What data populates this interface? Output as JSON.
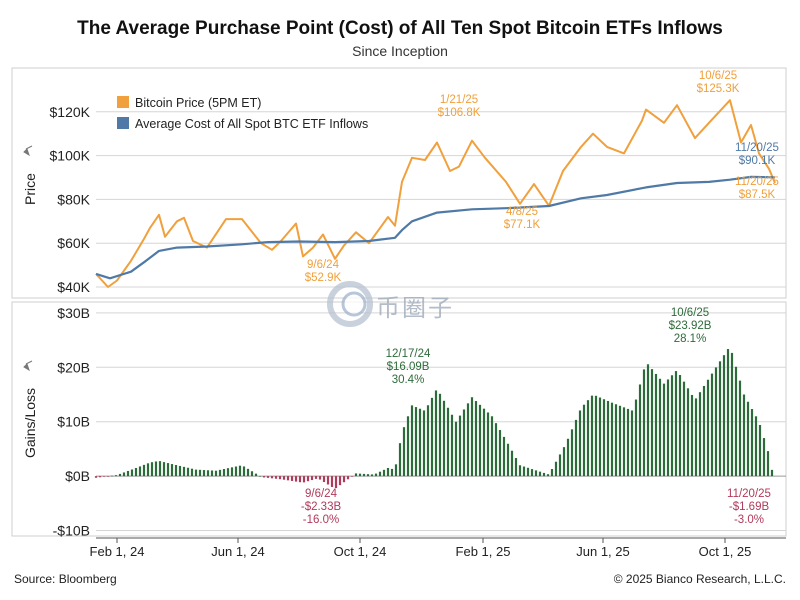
{
  "header": {
    "title": "The Average Purchase Point (Cost) of All Ten Spot Bitcoin ETFs Inflows",
    "subtitle": "Since Inception"
  },
  "footer": {
    "source": "Source: Bloomberg",
    "copyright": "© 2025 Bianco Research, L.L.C."
  },
  "watermark": {
    "text": "币圈子"
  },
  "colors": {
    "price": "#F0A03C",
    "cost": "#4F79A6",
    "gain": "#2E6B3A",
    "loss": "#B03A5B",
    "grid": "#D5D5D5",
    "axis": "#333333"
  },
  "chart_data": [
    {
      "type": "line",
      "ylabel": "Price",
      "ylim": [
        35000,
        140000
      ],
      "yticks": [
        40000,
        60000,
        80000,
        100000,
        120000
      ],
      "ytick_labels": [
        "$40K",
        "$60K",
        "$80K",
        "$100K",
        "$120K"
      ],
      "xlim": [
        "2024-01-11",
        "2025-12-01"
      ],
      "xticks": [
        "2024-02-01",
        "2024-06-01",
        "2024-10-01",
        "2025-02-01",
        "2025-06-01",
        "2025-10-01"
      ],
      "xtick_labels": [
        "Feb 1, 24",
        "Jun 1, 24",
        "Oct 1, 24",
        "Feb 1, 25",
        "Jun 1, 25",
        "Oct 1, 25"
      ],
      "grid": true,
      "legend_position": "top-left",
      "series": [
        {
          "name": "Bitcoin Price (5PM ET)",
          "x": [
            "2024-01-11",
            "2024-01-23",
            "2024-02-01",
            "2024-02-15",
            "2024-02-28",
            "2024-03-05",
            "2024-03-14",
            "2024-03-20",
            "2024-04-01",
            "2024-04-08",
            "2024-04-17",
            "2024-05-01",
            "2024-05-20",
            "2024-06-05",
            "2024-06-24",
            "2024-07-05",
            "2024-07-14",
            "2024-07-29",
            "2024-08-05",
            "2024-08-15",
            "2024-08-25",
            "2024-09-06",
            "2024-09-15",
            "2024-09-27",
            "2024-10-10",
            "2024-10-29",
            "2024-11-05",
            "2024-11-12",
            "2024-11-22",
            "2024-12-05",
            "2024-12-17",
            "2024-12-30",
            "2025-01-08",
            "2025-01-21",
            "2025-02-03",
            "2025-02-24",
            "2025-03-10",
            "2025-03-24",
            "2025-04-08",
            "2025-04-22",
            "2025-05-10",
            "2025-05-22",
            "2025-06-05",
            "2025-06-22",
            "2025-07-10",
            "2025-07-14",
            "2025-08-01",
            "2025-08-14",
            "2025-09-01",
            "2025-09-15",
            "2025-10-06",
            "2025-10-17",
            "2025-10-27",
            "2025-11-04",
            "2025-11-14",
            "2025-11-20"
          ],
          "y": [
            46000,
            40000,
            43000,
            52000,
            62000,
            67000,
            73000,
            63000,
            70000,
            71600,
            61000,
            58000,
            71000,
            71000,
            60000,
            57000,
            61000,
            69000,
            54000,
            58000,
            64000,
            52900,
            59000,
            65000,
            60000,
            72000,
            68000,
            88000,
            99000,
            98000,
            106000,
            93000,
            95000,
            106800,
            99000,
            88000,
            78000,
            87000,
            77100,
            93000,
            104000,
            110000,
            104000,
            101000,
            116000,
            121000,
            115000,
            123000,
            108000,
            115000,
            125300,
            106000,
            114000,
            101000,
            94000,
            87500
          ]
        },
        {
          "name": "Average Cost of All Spot BTC ETF Inflows",
          "x": [
            "2024-01-11",
            "2024-01-25",
            "2024-02-15",
            "2024-03-01",
            "2024-03-14",
            "2024-04-01",
            "2024-05-01",
            "2024-06-05",
            "2024-07-01",
            "2024-08-01",
            "2024-09-06",
            "2024-10-10",
            "2024-11-05",
            "2024-11-12",
            "2024-11-22",
            "2024-12-17",
            "2025-01-21",
            "2025-02-24",
            "2025-04-08",
            "2025-05-10",
            "2025-06-05",
            "2025-07-14",
            "2025-08-14",
            "2025-09-15",
            "2025-10-06",
            "2025-10-27",
            "2025-11-20"
          ],
          "y": [
            46000,
            44000,
            47000,
            52000,
            56500,
            58000,
            58500,
            59500,
            60500,
            60800,
            60500,
            61000,
            62500,
            66000,
            70000,
            74000,
            75500,
            76000,
            77000,
            80500,
            82000,
            85500,
            87500,
            88000,
            89000,
            90300,
            90100
          ]
        }
      ],
      "annotations": [
        {
          "date": "9/6/24",
          "value": "$52.9K",
          "series": "price"
        },
        {
          "date": "1/21/25",
          "value": "$106.8K",
          "series": "price"
        },
        {
          "date": "4/8/25",
          "value": "$77.1K",
          "series": "price"
        },
        {
          "date": "10/6/25",
          "value": "$125.3K",
          "series": "price"
        },
        {
          "date": "11/20/25",
          "value": "$90.1K",
          "series": "cost"
        },
        {
          "date": "11/20/25",
          "value": "$87.5K",
          "series": "price"
        }
      ]
    },
    {
      "type": "bar",
      "ylabel": "Gains/Loss",
      "ylim": [
        -11000000000,
        32000000000
      ],
      "yticks": [
        -10000000000,
        0,
        10000000000,
        20000000000,
        30000000000
      ],
      "ytick_labels": [
        "-$10B",
        "$0B",
        "$10B",
        "$20B",
        "$30B"
      ],
      "grid": true,
      "series": [
        {
          "name": "Gains/Loss",
          "x": [
            "2024-01-11",
            "2024-02-01",
            "2024-02-20",
            "2024-03-05",
            "2024-03-14",
            "2024-04-01",
            "2024-04-20",
            "2024-05-10",
            "2024-06-05",
            "2024-06-25",
            "2024-07-15",
            "2024-08-05",
            "2024-08-20",
            "2024-09-06",
            "2024-09-27",
            "2024-10-15",
            "2024-10-29",
            "2024-11-05",
            "2024-11-12",
            "2024-11-22",
            "2024-12-05",
            "2024-12-17",
            "2025-01-05",
            "2025-01-21",
            "2025-02-10",
            "2025-03-01",
            "2025-03-10",
            "2025-04-08",
            "2025-04-25",
            "2025-05-10",
            "2025-05-22",
            "2025-06-10",
            "2025-07-01",
            "2025-07-14",
            "2025-08-01",
            "2025-08-14",
            "2025-09-01",
            "2025-09-15",
            "2025-10-06",
            "2025-10-20",
            "2025-11-04",
            "2025-11-14",
            "2025-11-20"
          ],
          "y": [
            -300000000,
            200000000,
            1500000000,
            2500000000,
            2800000000,
            2000000000,
            1200000000,
            1000000000,
            2000000000,
            -200000000,
            -600000000,
            -1200000000,
            -400000000,
            -2330000000,
            500000000,
            300000000,
            1500000000,
            1200000000,
            8000000000,
            13000000000,
            12000000000,
            16090000000,
            10000000000,
            14500000000,
            11000000000,
            5000000000,
            2000000000,
            300000000,
            6000000000,
            12500000000,
            15000000000,
            13500000000,
            12000000000,
            21000000000,
            17000000000,
            19500000000,
            14000000000,
            18000000000,
            23920000000,
            15000000000,
            10000000000,
            4000000000,
            -1690000000
          ]
        }
      ],
      "annotations": [
        {
          "date": "12/17/24",
          "value": "$16.09B",
          "pct": "30.4%"
        },
        {
          "date": "10/6/25",
          "value": "$23.92B",
          "pct": "28.1%"
        },
        {
          "date": "9/6/24",
          "value": "-$2.33B",
          "pct": "-16.0%"
        },
        {
          "date": "11/20/25",
          "value": "-$1.69B",
          "pct": "-3.0%"
        }
      ]
    }
  ]
}
